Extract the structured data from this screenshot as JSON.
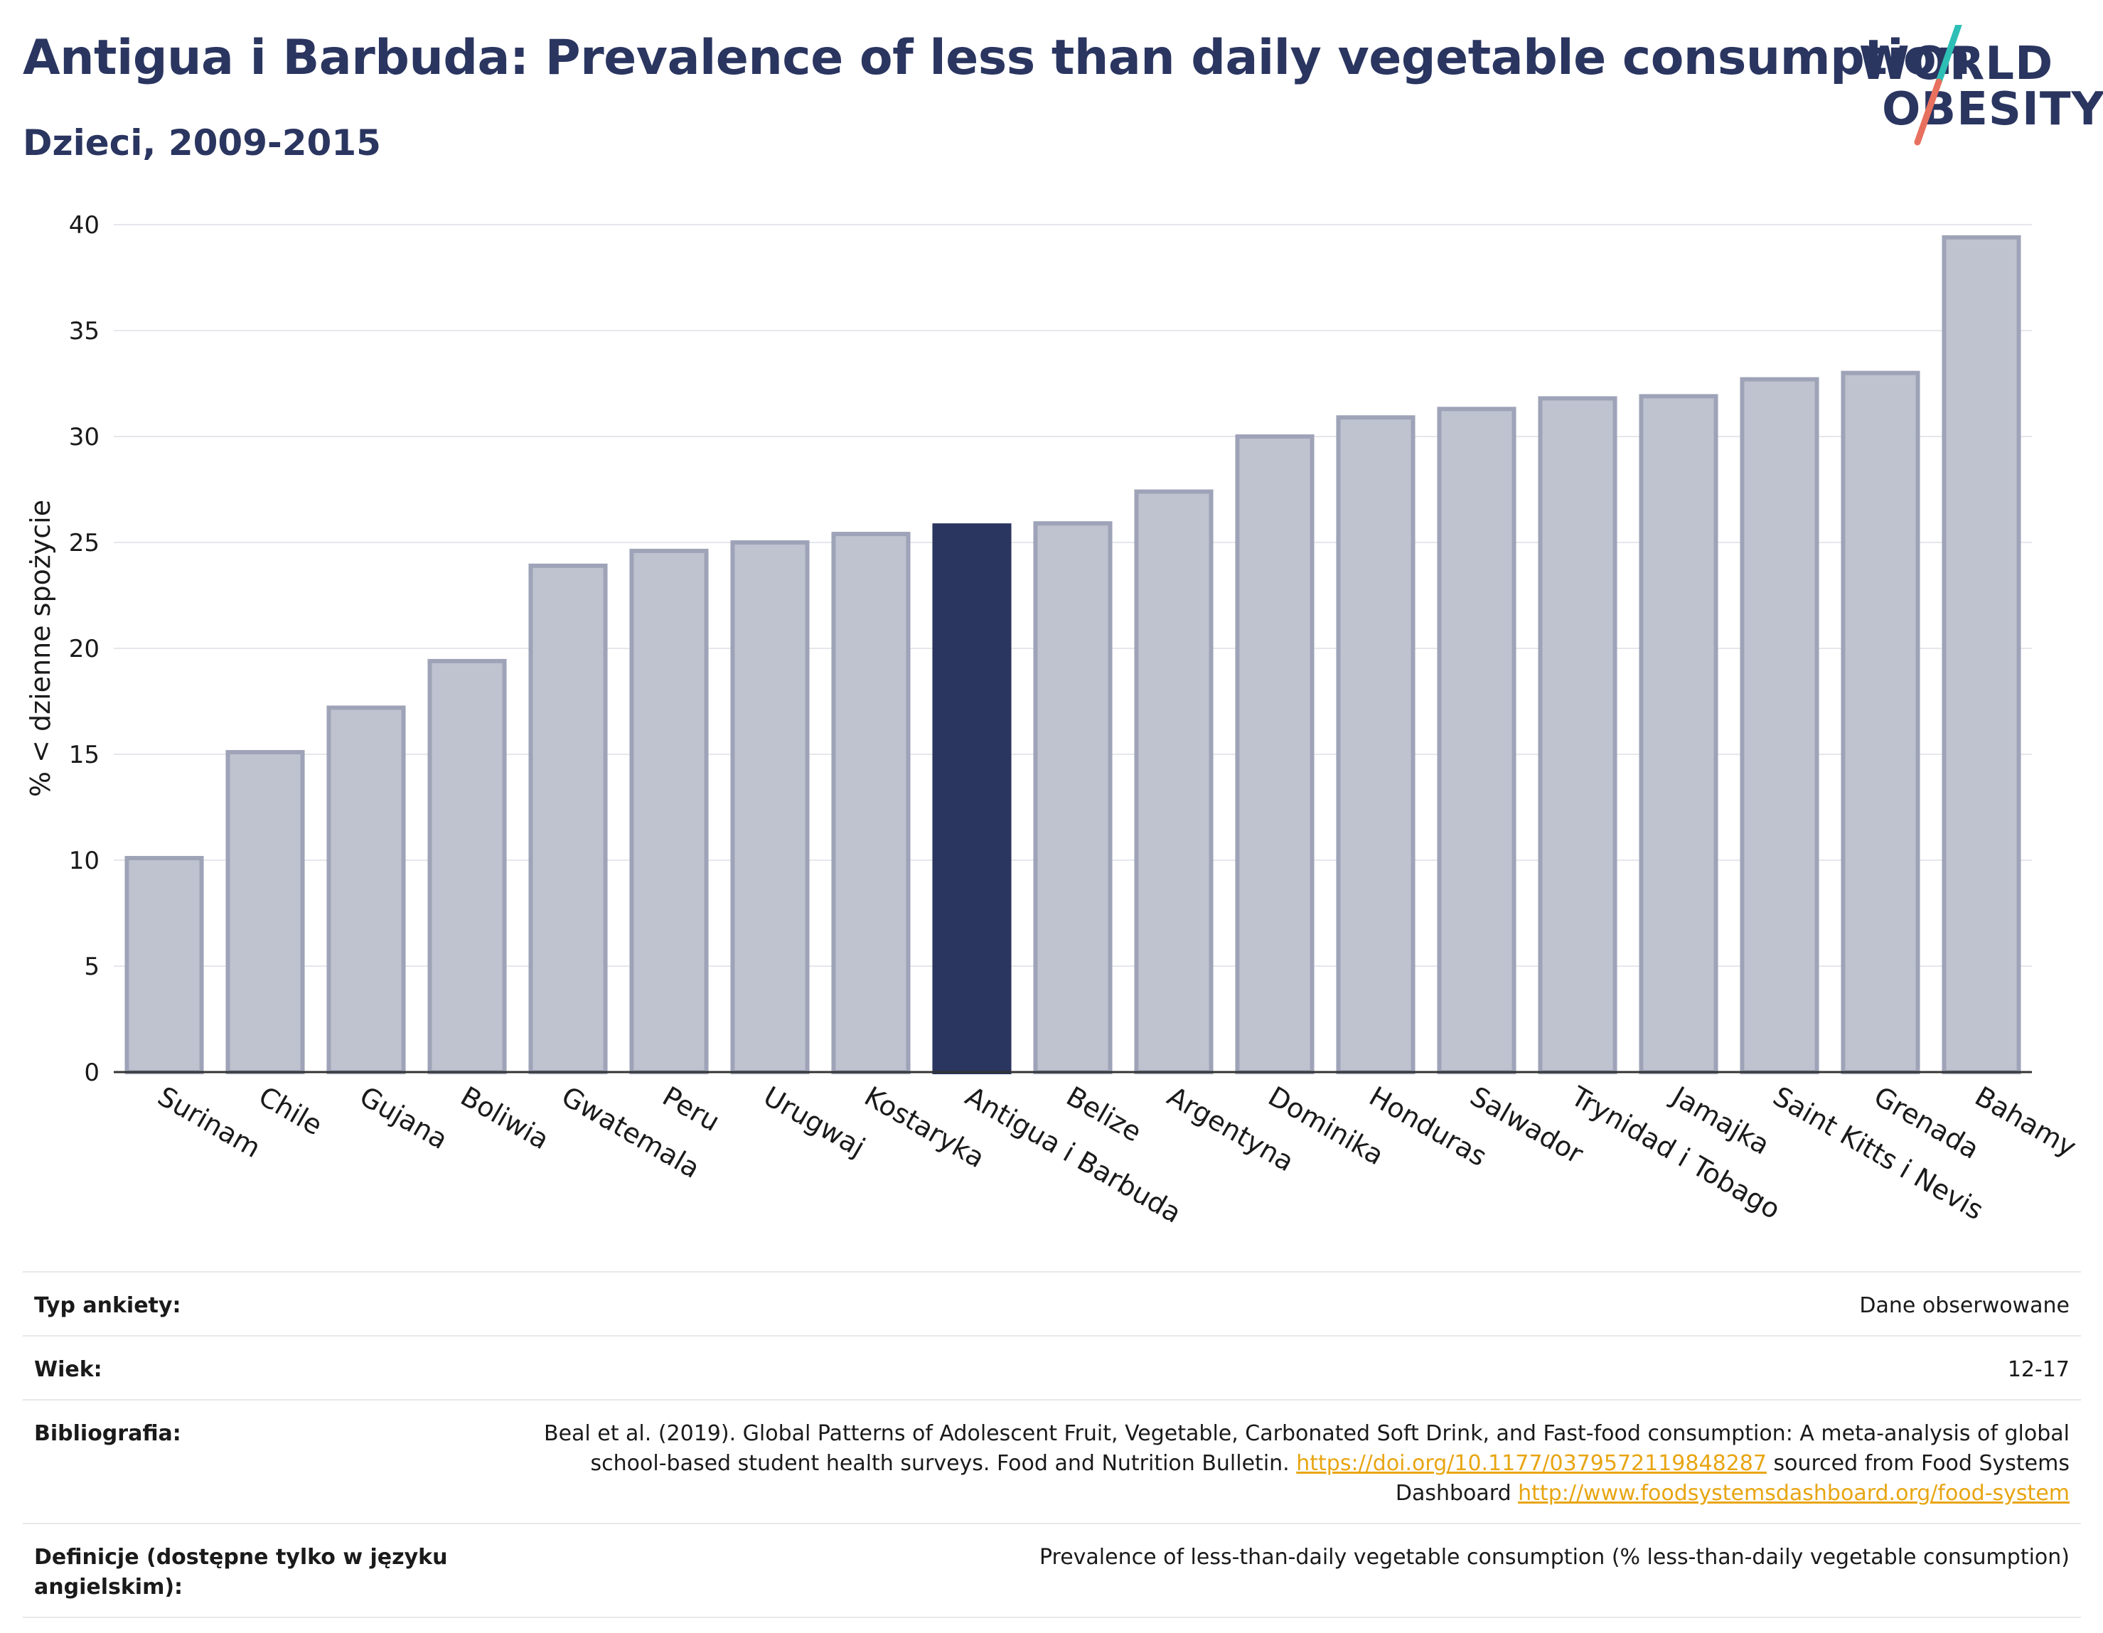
{
  "header": {
    "title": "Antigua i Barbuda: Prevalence of less than daily vegetable consumption",
    "subtitle": "Dzieci, 2009-2015"
  },
  "logo": {
    "line1": "WORLD",
    "line2": "OBESITY"
  },
  "colors": {
    "accent": "#2a3560",
    "bar": "#bfc2cf",
    "bar_border": "#9ea3b8",
    "highlight": "#2a3560",
    "link": "#e8a512",
    "logo_teal": "#2dbfb5",
    "logo_coral": "#e8705f"
  },
  "chart_data": {
    "type": "bar",
    "title": "Antigua i Barbuda: Prevalence of less than daily vegetable consumption",
    "subtitle": "Dzieci, 2009-2015",
    "ylabel": "% < dzienne spożycie",
    "xlabel": "",
    "ylim": [
      0,
      40
    ],
    "yticks": [
      0,
      5,
      10,
      15,
      20,
      25,
      30,
      35,
      40
    ],
    "grid": true,
    "highlight": "Antigua i Barbuda",
    "categories": [
      "Surinam",
      "Chile",
      "Gujana",
      "Boliwia",
      "Gwatemala",
      "Peru",
      "Urugwaj",
      "Kostaryka",
      "Antigua i Barbuda",
      "Belize",
      "Argentyna",
      "Dominika",
      "Honduras",
      "Salwador",
      "Trynidad i Tobago",
      "Jamajka",
      "Saint Kitts i Nevis",
      "Grenada",
      "Bahamy"
    ],
    "values": [
      10.1,
      15.1,
      17.2,
      19.4,
      23.9,
      24.6,
      25.0,
      25.4,
      25.8,
      25.9,
      27.4,
      30.0,
      30.9,
      31.3,
      31.8,
      31.9,
      32.7,
      33.0,
      39.4
    ]
  },
  "info": {
    "survey_type_label": "Typ ankiety:",
    "survey_type_value": "Dane obserwowane",
    "age_label": "Wiek:",
    "age_value": "12-17",
    "bibliography_label": "Bibliografia:",
    "bibliography_text1": "Beal et al. (2019). Global Patterns of Adolescent Fruit, Vegetable, Carbonated Soft Drink, and Fast-food consumption: A meta-analysis of global school-based student health surveys. Food and Nutrition Bulletin. ",
    "bibliography_link1": "https://doi.org/10.1177/0379572119848287",
    "bibliography_text2": " sourced from Food Systems Dashboard ",
    "bibliography_link2": "http://www.foodsystemsdashboard.org/food-system",
    "definitions_label": "Definicje (dostępne tylko w języku angielskim):",
    "definitions_value": "Prevalence of less-than-daily vegetable consumption (% less-than-daily vegetable consumption)"
  }
}
